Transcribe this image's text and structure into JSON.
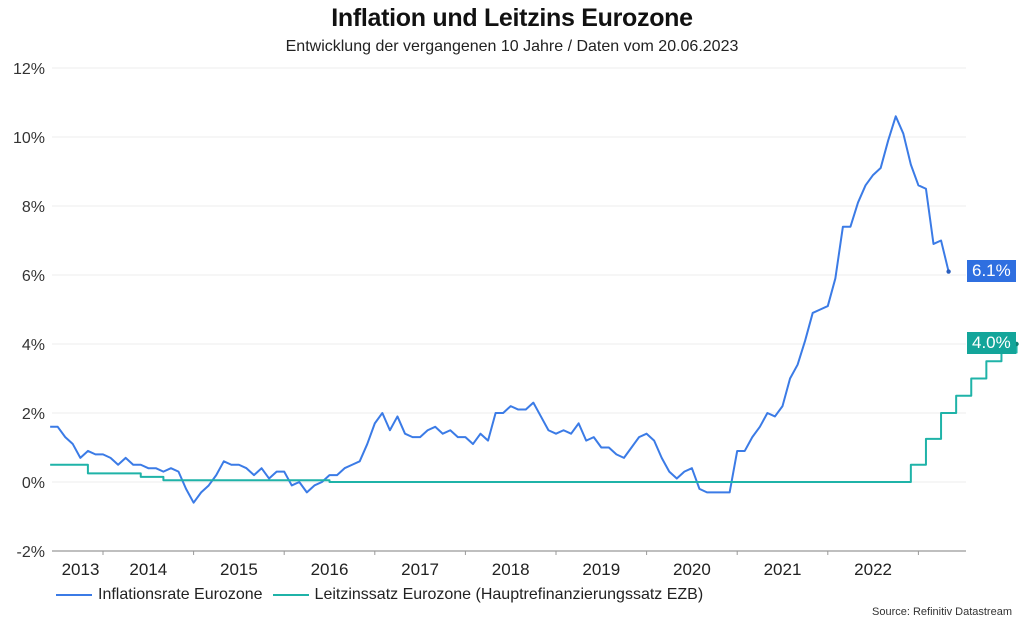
{
  "chart_data": {
    "type": "line",
    "title": "Inflation und Leitzins Eurozone",
    "subtitle": "Entwicklung der vergangenen 10 Jahre / Daten vom 20.06.2023",
    "source": "Source: Refinitiv Datastream",
    "xlabel": "",
    "ylabel": "",
    "ylim": [
      -2,
      12
    ],
    "yticks": [
      "-2%",
      "0%",
      "2%",
      "4%",
      "6%",
      "8%",
      "10%",
      "12%"
    ],
    "ytick_values": [
      -2,
      0,
      2,
      4,
      6,
      8,
      10,
      12
    ],
    "xticks": [
      "2013",
      "2014",
      "2015",
      "2016",
      "2017",
      "2018",
      "2019",
      "2020",
      "2021",
      "2022"
    ],
    "x_start": "2013-06",
    "grid": true,
    "legend_position": "bottom-left",
    "series": [
      {
        "name": "Inflationsrate Eurozone",
        "color": "#3b7be6",
        "badge_color": "#2f6fe0",
        "end_label": "6.1%",
        "values": [
          1.6,
          1.6,
          1.3,
          1.1,
          0.7,
          0.9,
          0.8,
          0.8,
          0.7,
          0.5,
          0.7,
          0.5,
          0.5,
          0.4,
          0.4,
          0.3,
          0.4,
          0.3,
          -0.2,
          -0.6,
          -0.3,
          -0.1,
          0.2,
          0.6,
          0.5,
          0.5,
          0.4,
          0.2,
          0.4,
          0.1,
          0.3,
          0.3,
          -0.1,
          0.0,
          -0.3,
          -0.1,
          0.0,
          0.2,
          0.2,
          0.4,
          0.5,
          0.6,
          1.1,
          1.7,
          2.0,
          1.5,
          1.9,
          1.4,
          1.3,
          1.3,
          1.5,
          1.6,
          1.4,
          1.5,
          1.3,
          1.3,
          1.1,
          1.4,
          1.2,
          2.0,
          2.0,
          2.2,
          2.1,
          2.1,
          2.3,
          1.9,
          1.5,
          1.4,
          1.5,
          1.4,
          1.7,
          1.2,
          1.3,
          1.0,
          1.0,
          0.8,
          0.7,
          1.0,
          1.3,
          1.4,
          1.2,
          0.7,
          0.3,
          0.1,
          0.3,
          0.4,
          -0.2,
          -0.3,
          -0.3,
          -0.3,
          -0.3,
          0.9,
          0.9,
          1.3,
          1.6,
          2.0,
          1.9,
          2.2,
          3.0,
          3.4,
          4.1,
          4.9,
          5.0,
          5.1,
          5.9,
          7.4,
          7.4,
          8.1,
          8.6,
          8.9,
          9.1,
          9.9,
          10.6,
          10.1,
          9.2,
          8.6,
          8.5,
          6.9,
          7.0,
          6.1
        ]
      },
      {
        "name": "Leitzinssatz Eurozone (Hauptrefinanzierungssatz EZB)",
        "color": "#1fb3a8",
        "badge_color": "#13a59a",
        "end_label": "4.0%",
        "values": [
          0.5,
          0.5,
          0.5,
          0.5,
          0.5,
          0.25,
          0.25,
          0.25,
          0.25,
          0.25,
          0.25,
          0.25,
          0.15,
          0.15,
          0.15,
          0.05,
          0.05,
          0.05,
          0.05,
          0.05,
          0.05,
          0.05,
          0.05,
          0.05,
          0.05,
          0.05,
          0.05,
          0.05,
          0.05,
          0.05,
          0.05,
          0.05,
          0.05,
          0.05,
          0.05,
          0.05,
          0.05,
          0.0,
          0.0,
          0.0,
          0.0,
          0.0,
          0.0,
          0.0,
          0.0,
          0.0,
          0.0,
          0.0,
          0.0,
          0.0,
          0.0,
          0.0,
          0.0,
          0.0,
          0.0,
          0.0,
          0.0,
          0.0,
          0.0,
          0.0,
          0.0,
          0.0,
          0.0,
          0.0,
          0.0,
          0.0,
          0.0,
          0.0,
          0.0,
          0.0,
          0.0,
          0.0,
          0.0,
          0.0,
          0.0,
          0.0,
          0.0,
          0.0,
          0.0,
          0.0,
          0.0,
          0.0,
          0.0,
          0.0,
          0.0,
          0.0,
          0.0,
          0.0,
          0.0,
          0.0,
          0.0,
          0.0,
          0.0,
          0.0,
          0.0,
          0.0,
          0.0,
          0.0,
          0.0,
          0.0,
          0.0,
          0.0,
          0.0,
          0.0,
          0.0,
          0.0,
          0.0,
          0.0,
          0.0,
          0.0,
          0.0,
          0.0,
          0.0,
          0.0,
          0.5,
          0.5,
          1.25,
          1.25,
          2.0,
          2.0,
          2.5,
          2.5,
          3.0,
          3.0,
          3.5,
          3.5,
          3.75,
          3.75,
          4.0
        ]
      }
    ]
  }
}
